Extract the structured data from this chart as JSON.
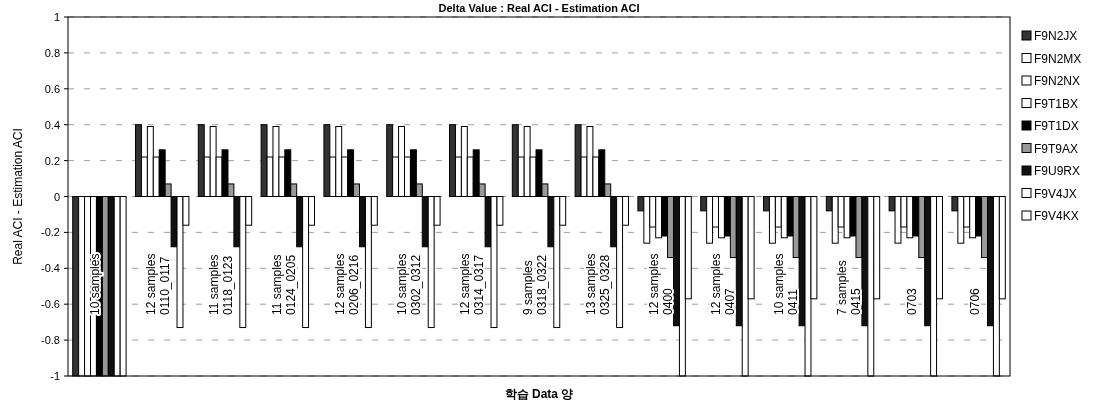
{
  "chart_data": {
    "type": "bar",
    "title": "Delta Value : Real ACI - Estimation ACI",
    "xlabel": "학습 Data 양",
    "ylabel": "Real ACI - Estimation ACI",
    "categories": [
      "10 samples",
      "12 samples\n0110_0117",
      "11 samples\n0118_0123",
      "11 samples\n0124_0205",
      "12 samples\n0206_0216",
      "10 samples\n0302_0312",
      "12 samples\n0314_0317",
      "9 samples\n0318_0322",
      "13 samples\n0325_0328",
      "12 samples\n0400",
      "12 samples\n0407",
      "10 samples\n0411",
      "7 samples\n0415",
      "0703",
      "0706"
    ],
    "series": [
      {
        "name": "F9N2JX",
        "color": "#333333",
        "values": [
          -1,
          0.4,
          0.4,
          0.4,
          0.4,
          0.4,
          0.4,
          0.4,
          0.4,
          -0.08,
          -0.08,
          -0.08,
          -0.08,
          -0.08,
          -0.08
        ]
      },
      {
        "name": "F9N2MX",
        "color": "#ffffff",
        "values": [
          -1,
          0.22,
          0.22,
          0.22,
          0.22,
          0.22,
          0.22,
          0.22,
          0.22,
          -0.26,
          -0.26,
          -0.26,
          -0.26,
          -0.26,
          -0.26
        ]
      },
      {
        "name": "F9N2NX",
        "color": "#ffffff",
        "values": [
          -1,
          0.39,
          0.39,
          0.39,
          0.39,
          0.39,
          0.39,
          0.39,
          0.39,
          -0.17,
          -0.17,
          -0.17,
          -0.17,
          -0.17,
          -0.17
        ]
      },
      {
        "name": "F9T1BX",
        "color": "#ffffff",
        "values": [
          -1,
          0.22,
          0.22,
          0.22,
          0.22,
          0.22,
          0.22,
          0.22,
          0.22,
          -0.23,
          -0.23,
          -0.23,
          -0.23,
          -0.23,
          -0.23
        ]
      },
      {
        "name": "F9T1DX",
        "color": "#000000",
        "values": [
          -1,
          0.26,
          0.26,
          0.26,
          0.26,
          0.26,
          0.26,
          0.26,
          0.26,
          -0.22,
          -0.22,
          -0.22,
          -0.22,
          -0.22,
          -0.22
        ]
      },
      {
        "name": "F9T9AX",
        "color": "#999999",
        "values": [
          -1,
          0.07,
          0.07,
          0.07,
          0.07,
          0.07,
          0.07,
          0.07,
          0.07,
          -0.34,
          -0.34,
          -0.34,
          -0.34,
          -0.34,
          -0.34
        ]
      },
      {
        "name": "F9U9RX",
        "color": "#111111",
        "values": [
          -1,
          -0.28,
          -0.28,
          -0.28,
          -0.28,
          -0.28,
          -0.28,
          -0.28,
          -0.28,
          -0.72,
          -0.72,
          -0.72,
          -0.72,
          -0.72,
          -0.72
        ]
      },
      {
        "name": "F9V4JX",
        "color": "#ffffff",
        "values": [
          -1,
          -0.73,
          -0.73,
          -0.73,
          -0.73,
          -0.73,
          -0.73,
          -0.73,
          -0.73,
          -1,
          -1,
          -1,
          -1,
          -1,
          -1
        ]
      },
      {
        "name": "F9V4KX",
        "color": "#ffffff",
        "values": [
          -1,
          -0.16,
          -0.16,
          -0.16,
          -0.16,
          -0.16,
          -0.16,
          -0.16,
          -0.16,
          -0.57,
          -0.57,
          -0.57,
          -0.57,
          -0.57,
          -0.57
        ]
      }
    ],
    "ylim": [
      -1,
      1
    ],
    "yticks": [
      -1,
      -0.8,
      -0.6,
      -0.4,
      -0.2,
      0,
      0.2,
      0.4,
      0.6,
      0.8,
      1
    ],
    "grid": "y",
    "legend": "right"
  }
}
